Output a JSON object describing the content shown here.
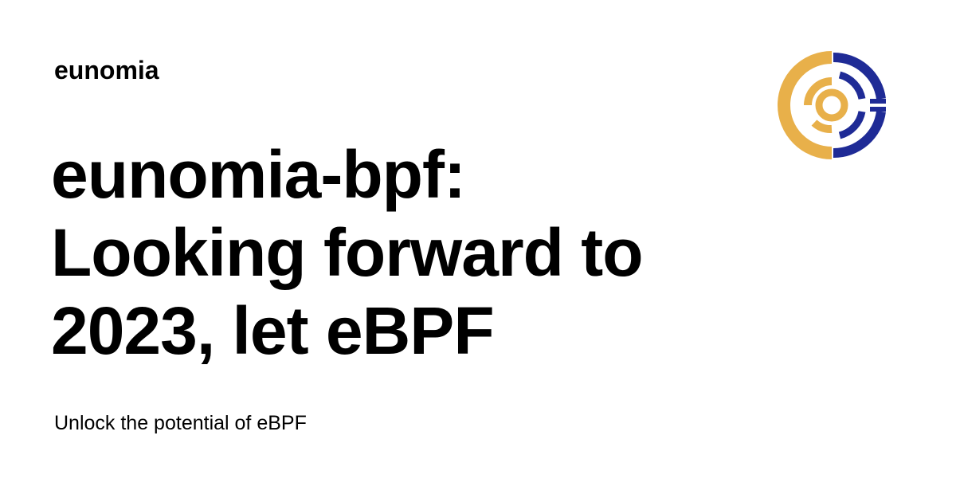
{
  "site": {
    "name": "eunomia"
  },
  "post": {
    "title_lines": [
      "eunomia-bpf:",
      "Looking forward to",
      "2023, let eBPF"
    ],
    "description": "Unlock the potential of eBPF"
  },
  "logo": {
    "icon": "eunomia-logo-icon",
    "colors": {
      "gold": "#E8B04A",
      "navy": "#1F2B96"
    }
  },
  "colors": {
    "background": "#FFFFFF",
    "text": "#000000"
  }
}
